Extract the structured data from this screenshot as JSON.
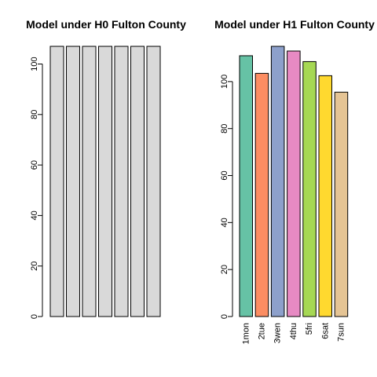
{
  "chart_data": [
    {
      "type": "bar",
      "title": "Model under H0 Fulton County",
      "categories": [
        "",
        "",
        "",
        "",
        "",
        "",
        ""
      ],
      "values": [
        107,
        107,
        107,
        107,
        107,
        107,
        107
      ],
      "colors": [
        "#D9D9D9",
        "#D9D9D9",
        "#D9D9D9",
        "#D9D9D9",
        "#D9D9D9",
        "#D9D9D9",
        "#D9D9D9"
      ],
      "yticks": [
        0,
        20,
        40,
        60,
        80,
        100
      ],
      "ylim": [
        0,
        107
      ],
      "xlabel": "",
      "ylabel": ""
    },
    {
      "type": "bar",
      "title": "Model under H1 Fulton County",
      "categories": [
        "1mon",
        "2tue",
        "3wen",
        "4thu",
        "5fri",
        "6sat",
        "7sun"
      ],
      "values": [
        111,
        103.5,
        115,
        113,
        108.5,
        102.5,
        95.5
      ],
      "colors": [
        "#66C2A5",
        "#FC8D62",
        "#8DA0CB",
        "#E78AC3",
        "#A6D854",
        "#FFD92F",
        "#E5C494"
      ],
      "yticks": [
        0,
        20,
        40,
        60,
        80,
        100
      ],
      "ylim": [
        0,
        115
      ],
      "xlabel": "",
      "ylabel": ""
    }
  ]
}
